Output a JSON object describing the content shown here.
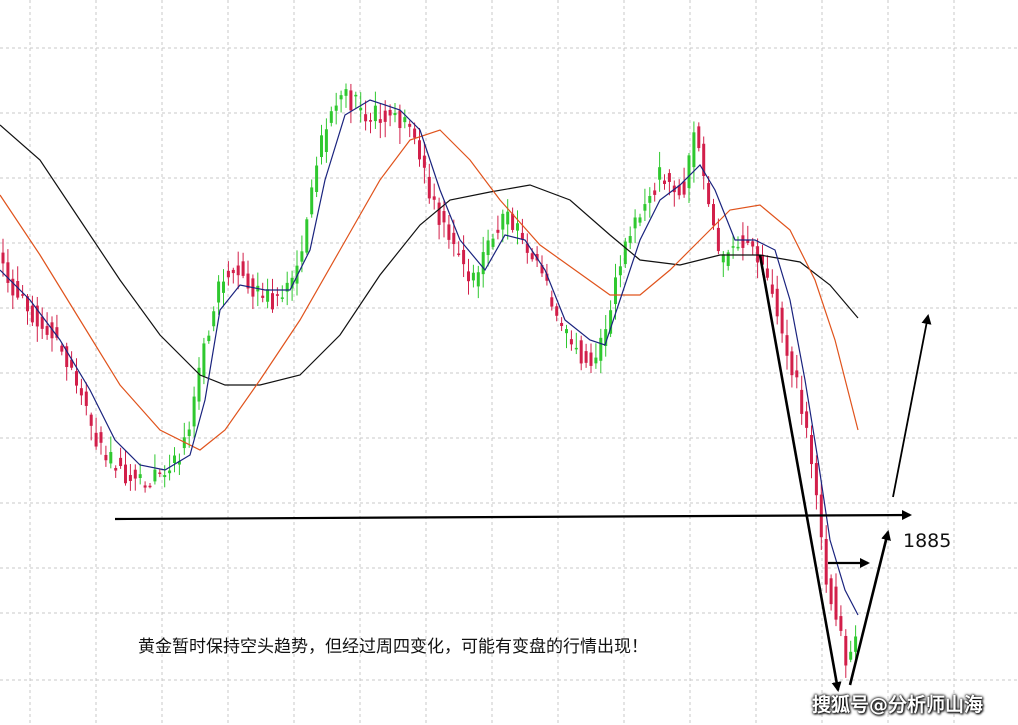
{
  "caption": "黄金暂时保持空头趋势，但经过周四变化，可能有变盘的行情出现！",
  "level_label": "1885",
  "watermark": "搜狐号@分析师山海",
  "colors": {
    "bull": "#2fc82f",
    "bear": "#d21f4a",
    "ma_fast": "#1a237e",
    "ma_mid": "#e0531c",
    "ma_slow": "#111111",
    "grid": "#c9c9c9",
    "arrow": "#000000"
  },
  "chart_data": {
    "type": "candlestick",
    "title": "",
    "grid": true,
    "annotations": [
      {
        "type": "horizontal-level",
        "label": "1885"
      },
      {
        "type": "arrow",
        "direction": "down"
      },
      {
        "type": "arrow",
        "direction": "up"
      }
    ],
    "series": [
      {
        "name": "",
        "style": "candles"
      },
      {
        "name": "",
        "style": "fast moving average line",
        "color": "#1a237e"
      },
      {
        "name": "",
        "style": "medium moving average line",
        "color": "#e0531c"
      },
      {
        "name": "",
        "style": "slow moving average line",
        "color": "#111111"
      }
    ]
  }
}
